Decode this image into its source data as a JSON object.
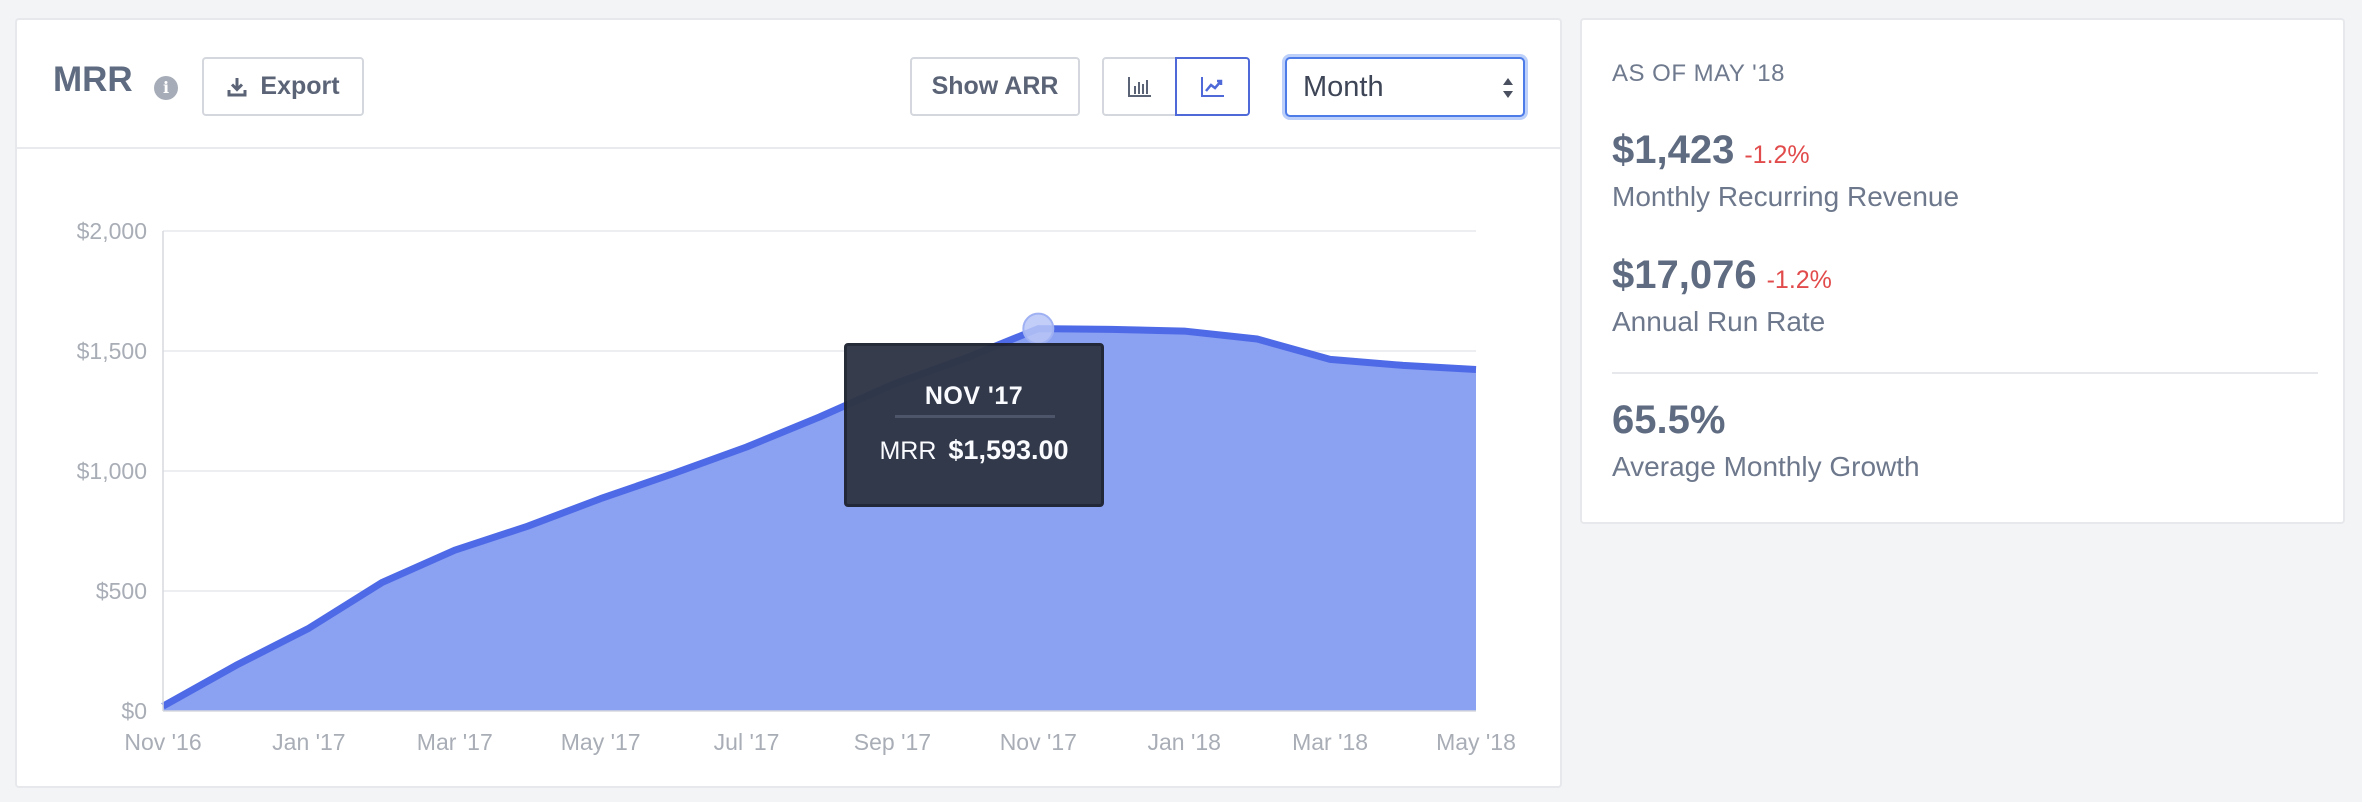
{
  "header": {
    "title": "MRR",
    "info_icon": "info-icon",
    "export_label": "Export",
    "show_arr_label": "Show ARR",
    "period_select": "Month"
  },
  "tooltip": {
    "title": "NOV '17",
    "label": "MRR",
    "value": "$1,593.00"
  },
  "summary": {
    "as_of": "AS OF MAY '18",
    "mrr_value": "$1,423",
    "mrr_change": "-1.2%",
    "mrr_label": "Monthly Recurring Revenue",
    "arr_value": "$17,076",
    "arr_change": "-1.2%",
    "arr_label": "Annual Run Rate",
    "growth_value": "65.5%",
    "growth_label": "Average Monthly Growth"
  },
  "colors": {
    "line": "#4e6ae6",
    "fill": "#8ba1f2",
    "negative": "#e24b4b"
  },
  "chart_data": {
    "type": "area",
    "x": [
      "Nov '16",
      "Dec '16",
      "Jan '17",
      "Feb '17",
      "Mar '17",
      "Apr '17",
      "May '17",
      "Jun '17",
      "Jul '17",
      "Aug '17",
      "Sep '17",
      "Oct '17",
      "Nov '17",
      "Dec '17",
      "Jan '18",
      "Feb '18",
      "Mar '18",
      "Apr '18",
      "May '18"
    ],
    "series": [
      {
        "name": "MRR",
        "values": [
          20,
          190,
          345,
          535,
          670,
          770,
          885,
          990,
          1100,
          1225,
          1360,
          1470,
          1593,
          1590,
          1583,
          1550,
          1465,
          1440,
          1423
        ]
      }
    ],
    "x_tick_labels": [
      "Nov '16",
      "Jan '17",
      "Mar '17",
      "May '17",
      "Jul '17",
      "Sep '17",
      "Nov '17",
      "Jan '18",
      "Mar '18",
      "May '18"
    ],
    "y_tick_labels": [
      "$0",
      "$500",
      "$1,000",
      "$1,500",
      "$2,000"
    ],
    "y_ticks": [
      0,
      500,
      1000,
      1500,
      2000
    ],
    "ylim": [
      0,
      2000
    ],
    "grid": true,
    "highlighted_point": "Nov '17"
  }
}
